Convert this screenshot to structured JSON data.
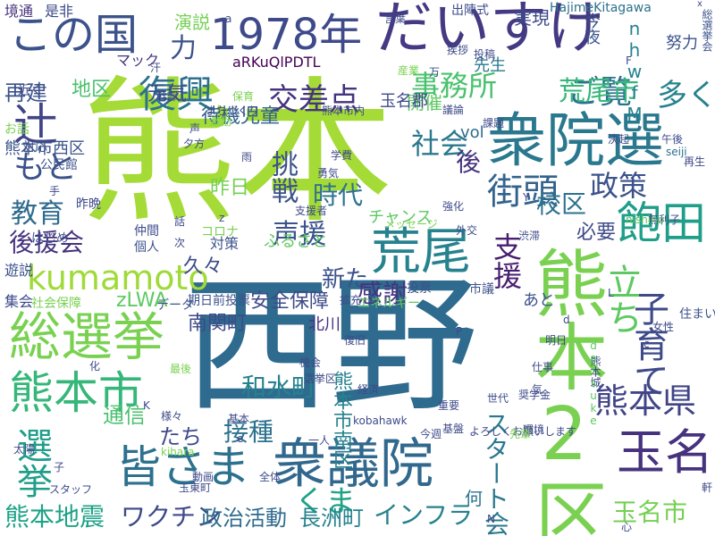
{
  "words": [
    {
      "text": "熊本",
      "color": "#a5db36",
      "orientation": "horizontal"
    },
    {
      "text": "西野",
      "color": "#2f6b8e",
      "orientation": "horizontal"
    },
    {
      "text": "熊本2区",
      "color": "#7ad151",
      "orientation": "vertical"
    },
    {
      "text": "だいすけ",
      "color": "#443983",
      "orientation": "horizontal"
    },
    {
      "text": "衆院選",
      "color": "#2a788e",
      "orientation": "horizontal"
    },
    {
      "text": "この国",
      "color": "#3b528b",
      "orientation": "horizontal"
    },
    {
      "text": "1978年",
      "color": "#3e4a89",
      "orientation": "horizontal"
    },
    {
      "text": "辻",
      "color": "#414487",
      "orientation": "horizontal"
    },
    {
      "text": "総選挙",
      "color": "#7ad151",
      "orientation": "horizontal"
    },
    {
      "text": "熊本市",
      "color": "#35b779",
      "orientation": "horizontal"
    },
    {
      "text": "皆さま",
      "color": "#2c728e",
      "orientation": "horizontal"
    },
    {
      "text": "衆議院",
      "color": "#31688e",
      "orientation": "horizontal"
    },
    {
      "text": "立ち",
      "color": "#5ec962",
      "orientation": "vertical"
    },
    {
      "text": "荒尾",
      "color": "#26828e",
      "orientation": "horizontal"
    },
    {
      "text": "飽田",
      "color": "#1f9e89",
      "orientation": "horizontal"
    },
    {
      "text": "街頭",
      "color": "#33638d",
      "orientation": "horizontal"
    },
    {
      "text": "熊本県",
      "color": "#414487",
      "orientation": "horizontal"
    },
    {
      "text": "玉名",
      "color": "#46327e",
      "orientation": "horizontal"
    },
    {
      "text": "kumamoto",
      "color": "#a0da39",
      "orientation": "horizontal"
    },
    {
      "text": "くま",
      "color": "#1fa287",
      "orientation": "horizontal"
    },
    {
      "text": "選挙",
      "color": "#1f9e89",
      "orientation": "vertical"
    },
    {
      "text": "ご覧",
      "color": "#2c728e",
      "orientation": "horizontal"
    },
    {
      "text": "子育て",
      "color": "#3e4a89",
      "orientation": "vertical"
    },
    {
      "text": "復興",
      "color": "#2c728e",
      "orientation": "horizontal"
    },
    {
      "text": "もと",
      "color": "#3b528b",
      "orientation": "horizontal"
    },
    {
      "text": "教育",
      "color": "#2f6b8e",
      "orientation": "horizontal"
    },
    {
      "text": "社会",
      "color": "#2a788e",
      "orientation": "horizontal"
    },
    {
      "text": "政策",
      "color": "#3b528b",
      "orientation": "horizontal"
    },
    {
      "text": "荒尾市",
      "color": "#35b779",
      "orientation": "horizontal"
    },
    {
      "text": "事務所",
      "color": "#4ac16d",
      "orientation": "horizontal"
    },
    {
      "text": "交差点",
      "color": "#46337f",
      "orientation": "horizontal"
    },
    {
      "text": "声援",
      "color": "#3b528b",
      "orientation": "horizontal"
    },
    {
      "text": "挑戦",
      "color": "#3b528b",
      "orientation": "vertical"
    },
    {
      "text": "時代",
      "color": "#2c728e",
      "orientation": "horizontal"
    },
    {
      "text": "多く",
      "color": "#26828e",
      "orientation": "horizontal"
    },
    {
      "text": "力",
      "color": "#3b528b",
      "orientation": "horizontal"
    },
    {
      "text": "後援会",
      "color": "#46327e",
      "orientation": "horizontal"
    },
    {
      "text": "後",
      "color": "#46327e",
      "orientation": "horizontal"
    },
    {
      "text": "校区",
      "color": "#2c728e",
      "orientation": "horizontal"
    },
    {
      "text": "新た",
      "color": "#3b528b",
      "orientation": "horizontal"
    },
    {
      "text": "感謝",
      "color": "#46337f",
      "orientation": "horizontal"
    },
    {
      "text": "支援",
      "color": "#481f70",
      "orientation": "vertical"
    },
    {
      "text": "接種",
      "color": "#2c728e",
      "orientation": "horizontal"
    },
    {
      "text": "和水町",
      "color": "#26828e",
      "orientation": "horizontal"
    },
    {
      "text": "熊本地震",
      "color": "#1fa287",
      "orientation": "horizontal"
    },
    {
      "text": "ワクチン",
      "color": "#3e4a89",
      "orientation": "horizontal"
    },
    {
      "text": "政治活動",
      "color": "#2f6b8e",
      "orientation": "horizontal"
    },
    {
      "text": "長洲町",
      "color": "#26828e",
      "orientation": "horizontal"
    },
    {
      "text": "インフラ",
      "color": "#26828e",
      "orientation": "horizontal"
    },
    {
      "text": "玉名市",
      "color": "#75d054",
      "orientation": "horizontal"
    },
    {
      "text": "スタート会",
      "color": "#2a788e",
      "orientation": "vertical"
    },
    {
      "text": "通信",
      "color": "#4ac16d",
      "orientation": "horizontal"
    },
    {
      "text": "たち",
      "color": "#3e4a89",
      "orientation": "horizontal"
    },
    {
      "text": "南関町",
      "color": "#3e4a89",
      "orientation": "horizontal"
    },
    {
      "text": "熊本市南区",
      "color": "#26828e",
      "orientation": "vertical"
    },
    {
      "text": "待機児童",
      "color": "#33638d",
      "orientation": "horizontal"
    },
    {
      "text": "昨日",
      "color": "#75d054",
      "orientation": "horizontal"
    },
    {
      "text": "必要",
      "color": "#3e4a89",
      "orientation": "horizontal"
    },
    {
      "text": "久々",
      "color": "#3e4a89",
      "orientation": "horizontal"
    },
    {
      "text": "zLWA",
      "color": "#5ec962",
      "orientation": "horizontal"
    },
    {
      "text": "安全保障",
      "color": "#3e4a89",
      "orientation": "horizontal"
    },
    {
      "text": "地区",
      "color": "#4ac16d",
      "orientation": "horizontal"
    },
    {
      "text": "元気",
      "color": "#3e4a89",
      "orientation": "horizontal"
    },
    {
      "text": "再建",
      "color": "#3b528b",
      "orientation": "horizontal"
    },
    {
      "text": "演説",
      "color": "#75d054",
      "orientation": "horizontal"
    },
    {
      "text": "実現",
      "color": "#3e4a89",
      "orientation": "horizontal"
    },
    {
      "text": "何",
      "color": "#2c728e",
      "orientation": "horizontal"
    },
    {
      "text": "aRKuQlPDTL",
      "color": "#440154",
      "orientation": "horizontal"
    },
    {
      "text": "nhwfM",
      "color": "#26828e",
      "orientation": "vertical"
    },
    {
      "text": "今夜",
      "color": "#3b528b",
      "orientation": "vertical"
    },
    {
      "text": "先生",
      "color": "#2a788e",
      "orientation": "horizontal"
    },
    {
      "text": "開催",
      "color": "#5ec962",
      "orientation": "horizontal"
    },
    {
      "text": "玉名郡",
      "color": "#3e4a89",
      "orientation": "horizontal"
    },
    {
      "text": "vol",
      "color": "#2f6b8e",
      "orientation": "horizontal"
    },
    {
      "text": "北川",
      "color": "#46327e",
      "orientation": "horizontal"
    },
    {
      "text": "チャンス",
      "color": "#5ec962",
      "orientation": "horizontal"
    },
    {
      "text": "ふるさと",
      "color": "#5ec962",
      "orientation": "horizontal"
    },
    {
      "text": "あと",
      "color": "#3b528b",
      "orientation": "horizontal"
    },
    {
      "text": "マック",
      "color": "#46327e",
      "orientation": "horizontal"
    },
    {
      "text": "HajimeKitagawa",
      "color": "#2c728e",
      "orientation": "horizontal"
    },
    {
      "text": "出陣式",
      "color": "#3e4a89",
      "orientation": "horizontal"
    },
    {
      "text": "境通",
      "color": "#46327e",
      "orientation": "horizontal"
    },
    {
      "text": "是非",
      "color": "#3e4a89",
      "orientation": "horizontal"
    },
    {
      "text": "努力",
      "color": "#3b528b",
      "orientation": "horizontal"
    },
    {
      "text": "総選挙会",
      "color": "#3b528b",
      "orientation": "vertical"
    },
    {
      "text": "近く",
      "color": "#3e4a89",
      "orientation": "horizontal"
    },
    {
      "text": "お話",
      "color": "#7ad151",
      "orientation": "horizontal"
    },
    {
      "text": "熊本市西区",
      "color": "#3b528b",
      "orientation": "horizontal"
    },
    {
      "text": "公民館",
      "color": "#3b528b",
      "orientation": "horizontal"
    },
    {
      "text": "遊説",
      "color": "#3b528b",
      "orientation": "horizontal"
    },
    {
      "text": "集会",
      "color": "#3e4a89",
      "orientation": "horizontal"
    },
    {
      "text": "社会保障",
      "color": "#7ad151",
      "orientation": "horizontal"
    },
    {
      "text": "対応",
      "color": "#3b528b",
      "orientation": "horizontal"
    },
    {
      "text": "昨晩",
      "color": "#3e4a89",
      "orientation": "horizontal"
    },
    {
      "text": "仲間",
      "color": "#3e4a89",
      "orientation": "horizontal"
    },
    {
      "text": "個人",
      "color": "#3b528b",
      "orientation": "horizontal"
    },
    {
      "text": "はじめ",
      "color": "#3b528b",
      "orientation": "horizontal"
    },
    {
      "text": "コロナ",
      "color": "#7ad151",
      "orientation": "horizontal"
    },
    {
      "text": "対策",
      "color": "#3b528b",
      "orientation": "horizontal"
    },
    {
      "text": "期日前投票",
      "color": "#3b528b",
      "orientation": "horizontal"
    },
    {
      "text": "データ",
      "color": "#3b528b",
      "orientation": "horizontal"
    },
    {
      "text": "エネルギー",
      "color": "#5ec962",
      "orientation": "horizontal"
    },
    {
      "text": "投票",
      "color": "#3b528b",
      "orientation": "horizontal"
    },
    {
      "text": "市議",
      "color": "#3b528b",
      "orientation": "horizontal"
    },
    {
      "text": "住まい",
      "color": "#3b528b",
      "orientation": "horizontal"
    },
    {
      "text": "まちづくり",
      "color": "#3e4a89",
      "orientation": "horizontal"
    },
    {
      "text": "熊本市内",
      "color": "#3e4a89",
      "orientation": "horizontal"
    },
    {
      "text": "議論",
      "color": "#3e4a89",
      "orientation": "horizontal"
    },
    {
      "text": "課題",
      "color": "#3e4a89",
      "orientation": "horizontal"
    },
    {
      "text": "決起",
      "color": "#3e4a89",
      "orientation": "horizontal"
    },
    {
      "text": "午後",
      "color": "#3e4a89",
      "orientation": "horizontal"
    },
    {
      "text": "seiji",
      "color": "#2c728e",
      "orientation": "horizontal"
    },
    {
      "text": "再生",
      "color": "#3e4a89",
      "orientation": "horizontal"
    },
    {
      "text": "無利子",
      "color": "#3e4a89",
      "orientation": "horizontal"
    },
    {
      "text": "nishino",
      "color": "#5ec962",
      "orientation": "horizontal"
    },
    {
      "text": "渋滞",
      "color": "#3e4a89",
      "orientation": "horizontal"
    },
    {
      "text": "メッセージ",
      "color": "#7ad151",
      "orientation": "horizontal"
    },
    {
      "text": "外交",
      "color": "#3e4a89",
      "orientation": "horizontal"
    },
    {
      "text": "強化",
      "color": "#3e4a89",
      "orientation": "horizontal"
    },
    {
      "text": "学費",
      "color": "#3e4a89",
      "orientation": "horizontal"
    },
    {
      "text": "勇気",
      "color": "#3e4a89",
      "orientation": "horizontal"
    },
    {
      "text": "支援者",
      "color": "#3e4a89",
      "orientation": "horizontal"
    },
    {
      "text": "激励",
      "color": "#7ad151",
      "orientation": "horizontal"
    },
    {
      "text": "夕方",
      "color": "#3e4a89",
      "orientation": "horizontal"
    },
    {
      "text": "幹部",
      "color": "#3e4a89",
      "orientation": "horizontal"
    },
    {
      "text": "保育",
      "color": "#7ad151",
      "orientation": "horizontal"
    },
    {
      "text": "産業",
      "color": "#7ad151",
      "orientation": "horizontal"
    },
    {
      "text": "言葉",
      "color": "#3e4a89",
      "orientation": "horizontal"
    },
    {
      "text": "挨拶",
      "color": "#3e4a89",
      "orientation": "horizontal"
    },
    {
      "text": "投稿",
      "color": "#3e4a89",
      "orientation": "horizontal"
    },
    {
      "text": "拡充",
      "color": "#3e4a89",
      "orientation": "horizontal"
    },
    {
      "text": "復旧",
      "color": "#3e4a89",
      "orientation": "horizontal"
    },
    {
      "text": "熊本城",
      "color": "#3e4a89",
      "orientation": "vertical"
    },
    {
      "text": "daisuke",
      "color": "#5ec962",
      "orientation": "vertical"
    },
    {
      "text": "女性",
      "color": "#3e4a89",
      "orientation": "horizontal"
    },
    {
      "text": "仕事",
      "color": "#3e4a89",
      "orientation": "horizontal"
    },
    {
      "text": "明日",
      "color": "#3e4a89",
      "orientation": "horizontal"
    },
    {
      "text": "機会",
      "color": "#3e4a89",
      "orientation": "horizontal"
    },
    {
      "text": "選挙区",
      "color": "#3e4a89",
      "orientation": "horizontal"
    },
    {
      "text": "最後",
      "color": "#7ad151",
      "orientation": "horizontal"
    },
    {
      "text": "様々",
      "color": "#3e4a89",
      "orientation": "horizontal"
    },
    {
      "text": "kihara",
      "color": "#7ad151",
      "orientation": "horizontal"
    },
    {
      "text": "経済",
      "color": "#3e4a89",
      "orientation": "horizontal"
    },
    {
      "text": "奨学金",
      "color": "#3e4a89",
      "orientation": "horizontal"
    },
    {
      "text": "世代",
      "color": "#3e4a89",
      "orientation": "horizontal"
    },
    {
      "text": "kobahawk",
      "color": "#3e4a89",
      "orientation": "horizontal"
    },
    {
      "text": "基盤",
      "color": "#3e4a89",
      "orientation": "horizontal"
    },
    {
      "text": "重要",
      "color": "#3e4a89",
      "orientation": "horizontal"
    },
    {
      "text": "環境",
      "color": "#3e4a89",
      "orientation": "horizontal"
    },
    {
      "text": "よろしくお願いします",
      "color": "#3e4a89",
      "orientation": "horizontal"
    },
    {
      "text": "先輩",
      "color": "#7ad151",
      "orientation": "horizontal"
    },
    {
      "text": "今週",
      "color": "#3e4a89",
      "orientation": "horizontal"
    },
    {
      "text": "基本",
      "color": "#3e4a89",
      "orientation": "horizontal"
    },
    {
      "text": "一人",
      "color": "#3e4a89",
      "orientation": "horizontal"
    },
    {
      "text": "動画",
      "color": "#3e4a89",
      "orientation": "horizontal"
    },
    {
      "text": "全体",
      "color": "#3e4a89",
      "orientation": "horizontal"
    },
    {
      "text": "玉東町",
      "color": "#3e4a89",
      "orientation": "horizontal"
    },
    {
      "text": "太陽",
      "color": "#3e4a89",
      "orientation": "horizontal"
    },
    {
      "text": "スタッフ",
      "color": "#3e4a89",
      "orientation": "horizontal"
    },
    {
      "text": "心",
      "color": "#3e4a89",
      "orientation": "horizontal"
    },
    {
      "text": "軒",
      "color": "#3e4a89",
      "orientation": "horizontal"
    },
    {
      "text": "汗",
      "color": "#3e4a89",
      "orientation": "horizontal"
    },
    {
      "text": "声",
      "color": "#3e4a89",
      "orientation": "horizontal"
    },
    {
      "text": "雨",
      "color": "#3e4a89",
      "orientation": "horizontal"
    },
    {
      "text": "万",
      "color": "#3e4a89",
      "orientation": "horizontal"
    },
    {
      "text": "話",
      "color": "#3e4a89",
      "orientation": "horizontal"
    },
    {
      "text": "次",
      "color": "#3e4a89",
      "orientation": "horizontal"
    },
    {
      "text": "手",
      "color": "#3e4a89",
      "orientation": "horizontal"
    },
    {
      "text": "化",
      "color": "#3e4a89",
      "orientation": "horizontal"
    },
    {
      "text": "子",
      "color": "#3e4a89",
      "orientation": "horizontal"
    },
    {
      "text": "気",
      "color": "#3e4a89",
      "orientation": "horizontal"
    },
    {
      "text": "F",
      "color": "#3e4a89",
      "orientation": "horizontal"
    },
    {
      "text": "Y",
      "color": "#3e4a89",
      "orientation": "horizontal"
    },
    {
      "text": "P",
      "color": "#3e4a89",
      "orientation": "horizontal"
    },
    {
      "text": "a",
      "color": "#3e4a89",
      "orientation": "horizontal"
    },
    {
      "text": "x",
      "color": "#3e4a89",
      "orientation": "horizontal"
    },
    {
      "text": "c",
      "color": "#3e4a89",
      "orientation": "horizontal"
    },
    {
      "text": "d",
      "color": "#3e4a89",
      "orientation": "horizontal"
    },
    {
      "text": "e",
      "color": "#3e4a89",
      "orientation": "horizontal"
    },
    {
      "text": "K",
      "color": "#3e4a89",
      "orientation": "horizontal"
    },
    {
      "text": "N",
      "color": "#3e4a89",
      "orientation": "horizontal"
    },
    {
      "text": "L",
      "color": "#3e4a89",
      "orientation": "horizontal"
    },
    {
      "text": "z",
      "color": "#3e4a89",
      "orientation": "horizontal"
    }
  ]
}
